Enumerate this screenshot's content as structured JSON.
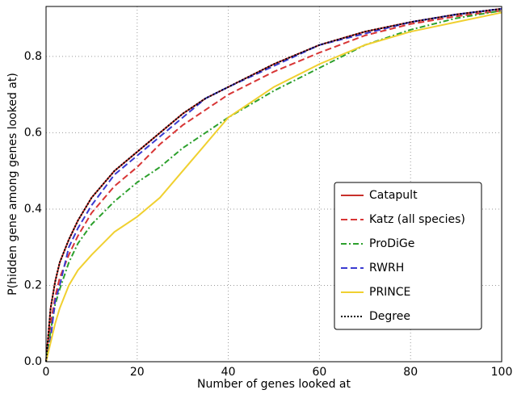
{
  "chart_data": {
    "type": "line",
    "xlabel": "Number of genes looked at",
    "ylabel": "P(hidden gene among genes looked at)",
    "x": [
      0,
      1,
      2,
      3,
      5,
      7,
      10,
      15,
      20,
      25,
      30,
      35,
      40,
      50,
      60,
      70,
      80,
      90,
      100
    ],
    "series": [
      {
        "name": "Catapult",
        "color": "#c8302b",
        "linestyle": "solid",
        "values": [
          0,
          0.14,
          0.21,
          0.26,
          0.32,
          0.37,
          0.43,
          0.5,
          0.55,
          0.6,
          0.65,
          0.69,
          0.72,
          0.78,
          0.83,
          0.865,
          0.89,
          0.91,
          0.925
        ]
      },
      {
        "name": "Katz (all species)",
        "color": "#d83535",
        "linestyle": "dashed",
        "values": [
          0,
          0.1,
          0.17,
          0.22,
          0.28,
          0.33,
          0.39,
          0.46,
          0.51,
          0.57,
          0.62,
          0.66,
          0.7,
          0.76,
          0.81,
          0.855,
          0.885,
          0.905,
          0.92
        ]
      },
      {
        "name": "ProDiGe",
        "color": "#2ca02c",
        "linestyle": "dashdot",
        "values": [
          0,
          0.08,
          0.15,
          0.19,
          0.26,
          0.31,
          0.36,
          0.42,
          0.47,
          0.51,
          0.56,
          0.6,
          0.64,
          0.71,
          0.77,
          0.83,
          0.87,
          0.9,
          0.92
        ]
      },
      {
        "name": "RWRH",
        "color": "#3a3ad0",
        "linestyle": "dashed",
        "values": [
          0,
          0.06,
          0.16,
          0.2,
          0.3,
          0.35,
          0.41,
          0.49,
          0.54,
          0.59,
          0.64,
          0.69,
          0.72,
          0.775,
          0.83,
          0.86,
          0.89,
          0.91,
          0.925
        ]
      },
      {
        "name": "PRINCE",
        "color": "#f0d030",
        "linestyle": "solid",
        "values": [
          0,
          0.05,
          0.1,
          0.14,
          0.2,
          0.24,
          0.28,
          0.34,
          0.38,
          0.43,
          0.5,
          0.57,
          0.64,
          0.72,
          0.78,
          0.83,
          0.865,
          0.89,
          0.915
        ]
      },
      {
        "name": "Degree",
        "color": "#000000",
        "linestyle": "dotted",
        "values": [
          0,
          0.14,
          0.21,
          0.26,
          0.32,
          0.37,
          0.43,
          0.5,
          0.55,
          0.6,
          0.65,
          0.69,
          0.72,
          0.78,
          0.83,
          0.865,
          0.89,
          0.91,
          0.925
        ]
      }
    ],
    "xlim": [
      0,
      100
    ],
    "ylim": [
      0,
      0.931
    ],
    "xticks": [
      0,
      20,
      40,
      60,
      80,
      100
    ],
    "yticks": [
      {
        "value": 0,
        "label": "0.0"
      },
      0.2,
      0.4,
      0.6,
      0.8
    ],
    "grid": true,
    "legend": "lower right"
  }
}
